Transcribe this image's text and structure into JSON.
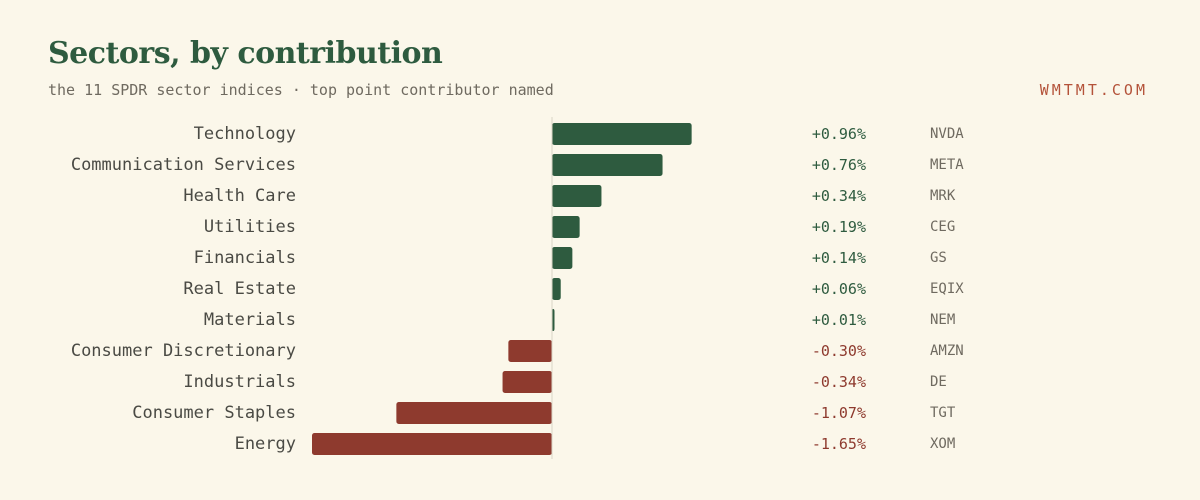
{
  "header": {
    "title": "Sectors, by contribution",
    "subtitle": "the 11 SPDR sector indices · top point contributor named",
    "brand": "WMTMT.COM"
  },
  "colors": {
    "positive": "#2e5b3f",
    "negative": "#8e3a2e",
    "background": "#fbf7ea",
    "accent": "#b4533a"
  },
  "chart_data": {
    "type": "bar",
    "orientation": "horizontal",
    "title": "Sectors, by contribution",
    "subtitle": "the 11 SPDR sector indices · top point contributor named",
    "categories": [
      "Technology",
      "Communication Services",
      "Health Care",
      "Utilities",
      "Financials",
      "Real Estate",
      "Materials",
      "Consumer Discretionary",
      "Industrials",
      "Consumer Staples",
      "Energy"
    ],
    "values": [
      0.96,
      0.76,
      0.34,
      0.19,
      0.14,
      0.06,
      0.01,
      -0.3,
      -0.34,
      -1.07,
      -1.65
    ],
    "value_labels": [
      "+0.96%",
      "+0.76%",
      "+0.34%",
      "+0.19%",
      "+0.14%",
      "+0.06%",
      "+0.01%",
      "-0.30%",
      "-0.34%",
      "-1.07%",
      "-1.65%"
    ],
    "top_contributors": [
      "NVDA",
      "META",
      "MRK",
      "CEG",
      "GS",
      "EQIX",
      "NEM",
      "AMZN",
      "DE",
      "TGT",
      "XOM"
    ],
    "units": "%",
    "xlim": [
      -1.65,
      0.96
    ],
    "grid": false,
    "legend": "none"
  }
}
